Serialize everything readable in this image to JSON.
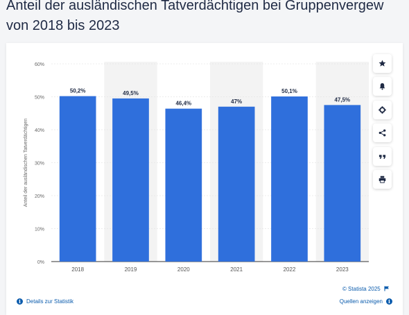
{
  "header": {
    "title_line1": "Anteil der ausländischen Tatverdächtigen bei Gruppenvergew",
    "title_line2": "von 2018 bis 2023"
  },
  "toolbar": {
    "icons": [
      "star-icon",
      "bell-icon",
      "gear-icon",
      "share-icon",
      "quote-icon",
      "print-icon"
    ]
  },
  "footer": {
    "copyright": "© Statista 2025",
    "details_link": "Details zur Statistik",
    "sources_link": "Quellen anzeigen"
  },
  "colors": {
    "bar": "#2f6fdc",
    "band": "#f3f3f3",
    "accent": "#0b5cad"
  },
  "chart_data": {
    "type": "bar",
    "categories": [
      "2018",
      "2019",
      "2020",
      "2021",
      "2022",
      "2023"
    ],
    "values": [
      50.2,
      49.5,
      46.4,
      47,
      50.1,
      47.5
    ],
    "data_labels": [
      "50,2%",
      "49,5%",
      "46,4%",
      "47%",
      "50,1%",
      "47,5%"
    ],
    "ylabel": "Anteil der ausländischen Tatverdächtigen",
    "xlabel": "",
    "ylim": [
      0,
      60
    ],
    "yticks": [
      0,
      10,
      20,
      30,
      40,
      50,
      60
    ],
    "ytick_labels": [
      "0%",
      "10%",
      "20%",
      "30%",
      "40%",
      "50%",
      "60%"
    ],
    "grid": true,
    "legend": "none"
  }
}
